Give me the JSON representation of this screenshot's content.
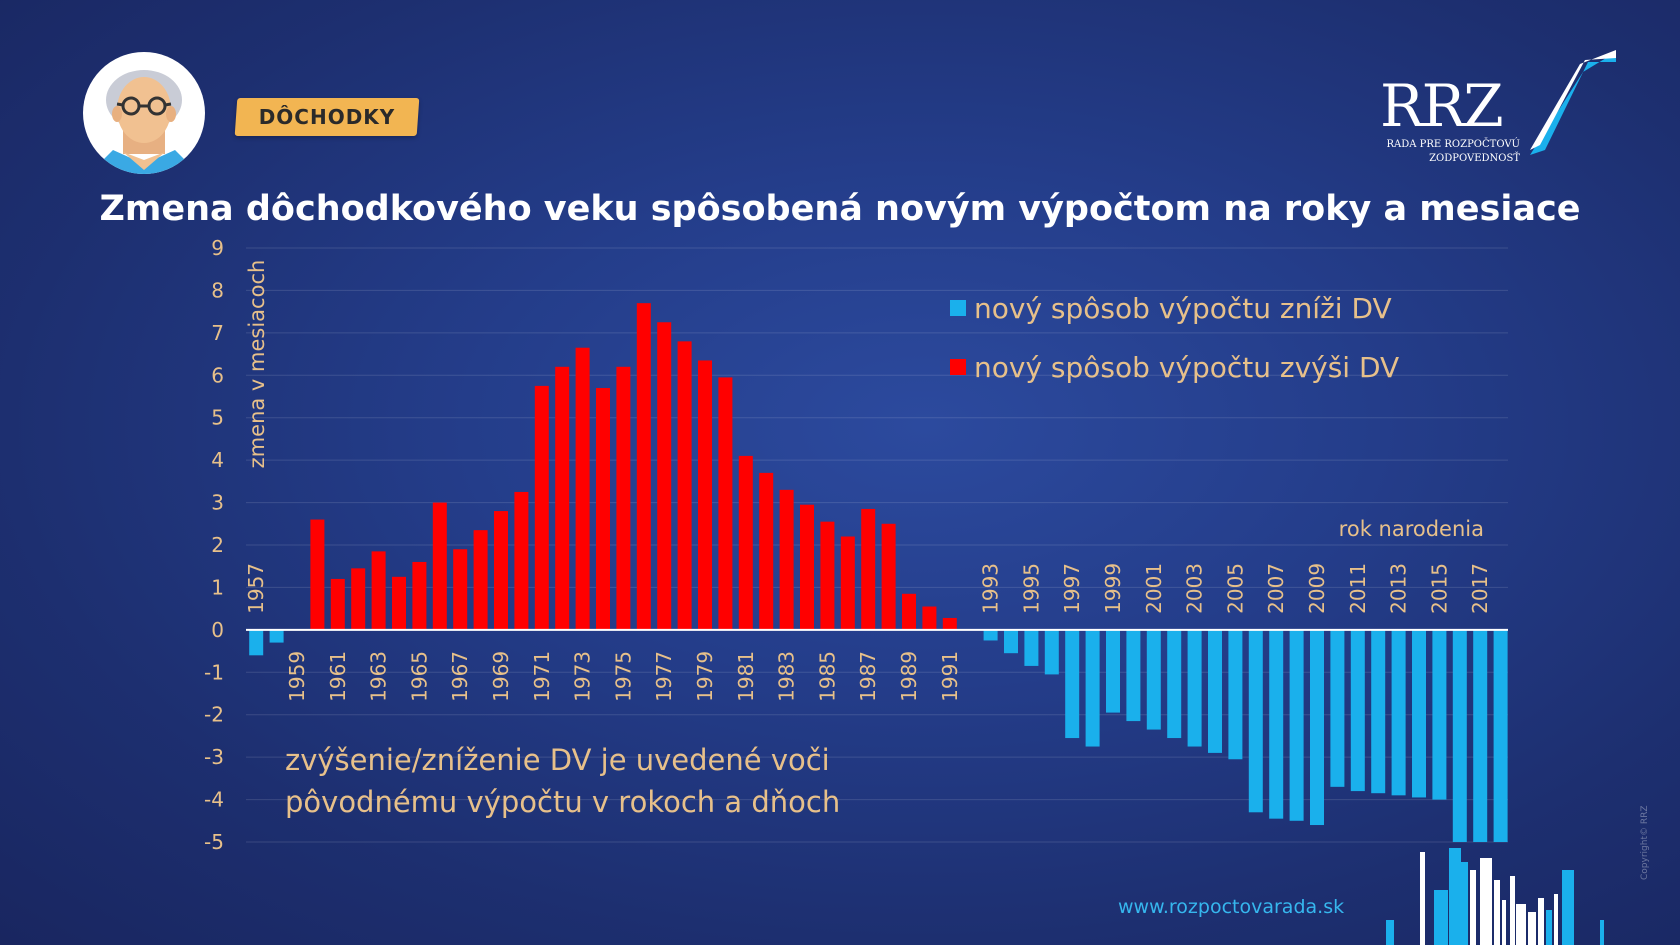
{
  "header": {
    "tag_label": "DÔCHODKY",
    "logo_text": "RRZ",
    "logo_subtitle_line1": "RADA PRE ROZPOČTOVÚ",
    "logo_subtitle_line2": "ZODPOVEDNOSŤ"
  },
  "title": "Zmena dôchodkového veku spôsobená novým výpočtom na roky a mesiace",
  "footer": {
    "website": "www.rozpoctovarada.sk",
    "copyright": "Copyright© RRZ"
  },
  "colors": {
    "increase": "#ff0000",
    "decrease": "#1ab0ec",
    "text": "#e7c08a"
  },
  "chart_data": {
    "type": "bar",
    "title": "Zmena dôchodkového veku spôsobená novým výpočtom na roky a mesiace",
    "ylabel": "zmena v mesiacoch",
    "xlabel": "rok narodenia",
    "ylim": [
      -5,
      9
    ],
    "yticks": [
      9,
      8,
      7,
      6,
      5,
      4,
      3,
      2,
      1,
      0,
      -1,
      -2,
      -3,
      -4,
      -5
    ],
    "grid": true,
    "legend_position": "top-right",
    "legend": [
      {
        "label": "nový spôsob výpočtu zníži DV",
        "color": "#1ab0ec"
      },
      {
        "label": "nový spôsob výpočtu zvýši DV",
        "color": "#ff0000"
      }
    ],
    "annotation_line1": "zvýšenie/zníženie DV je uvedené voči",
    "annotation_line2": "pôvodnému výpočtu v rokoch a dňoch",
    "years": [
      1957,
      1958,
      1959,
      1960,
      1961,
      1962,
      1963,
      1964,
      1965,
      1966,
      1967,
      1968,
      1969,
      1970,
      1971,
      1972,
      1973,
      1974,
      1975,
      1976,
      1977,
      1978,
      1979,
      1980,
      1981,
      1982,
      1983,
      1984,
      1985,
      1986,
      1987,
      1988,
      1989,
      1990,
      1991,
      1992,
      1993,
      1994,
      1995,
      1996,
      1997,
      1998,
      1999,
      2000,
      2001,
      2002,
      2003,
      2004,
      2005,
      2006,
      2007,
      2008,
      2009,
      2010,
      2011,
      2012,
      2013,
      2014,
      2015,
      2016,
      2017,
      2018
    ],
    "values": [
      -0.6,
      -0.3,
      0,
      2.6,
      1.2,
      1.45,
      1.85,
      1.25,
      1.6,
      3.0,
      1.9,
      2.35,
      2.8,
      3.25,
      5.75,
      6.2,
      6.65,
      5.7,
      6.2,
      7.7,
      7.25,
      6.8,
      6.35,
      5.95,
      4.1,
      3.7,
      3.3,
      2.95,
      2.55,
      2.2,
      2.85,
      2.5,
      0.85,
      0.55,
      0.28,
      0,
      -0.25,
      -0.55,
      -0.85,
      -1.05,
      -2.55,
      -2.75,
      -1.95,
      -2.15,
      -2.35,
      -2.55,
      -2.75,
      -2.9,
      -3.05,
      -4.3,
      -4.45,
      -4.5,
      -4.6,
      -3.7,
      -3.8,
      -3.85,
      -3.9,
      -3.95,
      -4.0,
      -5.0,
      -5.0,
      -5.0
    ],
    "label_years": [
      1957,
      1959,
      1961,
      1963,
      1965,
      1967,
      1969,
      1971,
      1973,
      1975,
      1977,
      1979,
      1981,
      1983,
      1985,
      1987,
      1989,
      1991,
      1993,
      1995,
      1997,
      1999,
      2001,
      2003,
      2005,
      2007,
      2009,
      2011,
      2013,
      2015,
      2017
    ]
  }
}
